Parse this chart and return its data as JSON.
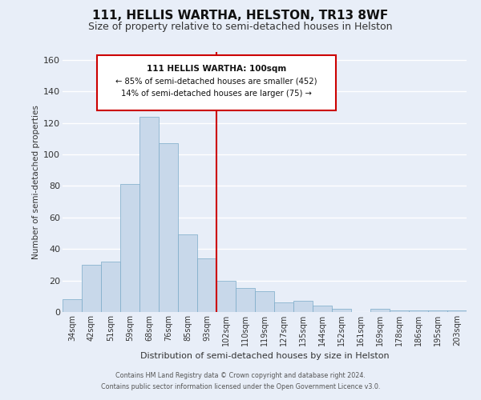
{
  "title": "111, HELLIS WARTHA, HELSTON, TR13 8WF",
  "subtitle": "Size of property relative to semi-detached houses in Helston",
  "xlabel": "Distribution of semi-detached houses by size in Helston",
  "ylabel": "Number of semi-detached properties",
  "bar_labels": [
    "34sqm",
    "42sqm",
    "51sqm",
    "59sqm",
    "68sqm",
    "76sqm",
    "85sqm",
    "93sqm",
    "102sqm",
    "110sqm",
    "119sqm",
    "127sqm",
    "135sqm",
    "144sqm",
    "152sqm",
    "161sqm",
    "169sqm",
    "178sqm",
    "186sqm",
    "195sqm",
    "203sqm"
  ],
  "bar_values": [
    8,
    30,
    32,
    81,
    124,
    107,
    49,
    34,
    20,
    15,
    13,
    6,
    7,
    4,
    2,
    0,
    2,
    1,
    1,
    1,
    1
  ],
  "bar_color": "#c8d8ea",
  "bar_edge_color": "#7aaac8",
  "vline_x_idx": 8,
  "vline_color": "#cc0000",
  "annotation_title": "111 HELLIS WARTHA: 100sqm",
  "annotation_line1": "← 85% of semi-detached houses are smaller (452)",
  "annotation_line2": "14% of semi-detached houses are larger (75) →",
  "annotation_box_color": "#ffffff",
  "annotation_box_edge": "#cc0000",
  "ylim": [
    0,
    165
  ],
  "yticks": [
    0,
    20,
    40,
    60,
    80,
    100,
    120,
    140,
    160
  ],
  "footer_line1": "Contains HM Land Registry data © Crown copyright and database right 2024.",
  "footer_line2": "Contains public sector information licensed under the Open Government Licence v3.0.",
  "background_color": "#e8eef8",
  "plot_background_color": "#e8eef8",
  "grid_color": "#ffffff",
  "title_fontsize": 11,
  "subtitle_fontsize": 9
}
